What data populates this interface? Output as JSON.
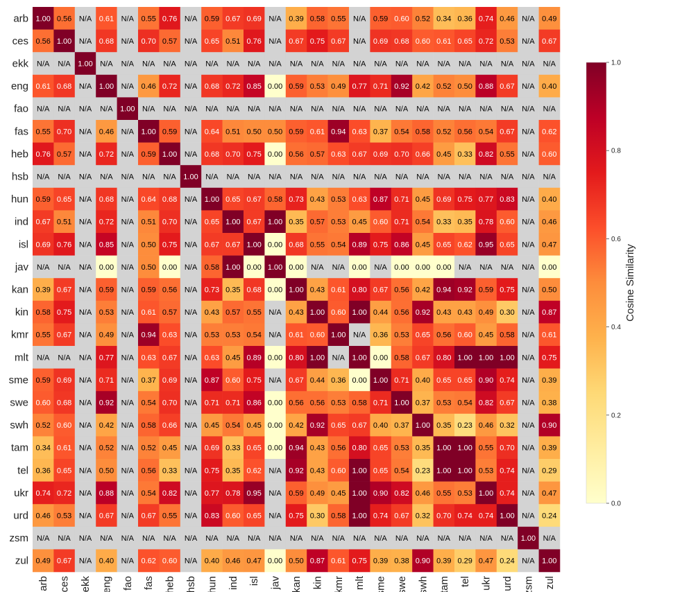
{
  "chart_data": {
    "type": "heatmap",
    "title": "",
    "languages": [
      "arb",
      "ces",
      "ekk",
      "eng",
      "fao",
      "fas",
      "heb",
      "hsb",
      "hun",
      "ind",
      "isl",
      "jav",
      "kan",
      "kin",
      "kmr",
      "mlt",
      "sme",
      "swe",
      "swh",
      "tam",
      "tel",
      "ukr",
      "urd",
      "zsm",
      "zul"
    ],
    "na_label": "N/A",
    "na_color": "#d3d3d3",
    "colorbar": {
      "label": "Cosine Similarity",
      "range": [
        0.0,
        1.0
      ],
      "ticks": [
        "0.0",
        "0.2",
        "0.4",
        "0.6",
        "0.8",
        "1.0"
      ],
      "colormap": "YlOrRd"
    },
    "values": [
      [
        1.0,
        0.56,
        null,
        0.61,
        null,
        0.55,
        0.76,
        null,
        0.59,
        0.67,
        0.69,
        null,
        0.39,
        0.58,
        0.55,
        null,
        0.59,
        0.6,
        0.52,
        0.34,
        0.36,
        0.74,
        0.46,
        null,
        0.49
      ],
      [
        0.56,
        1.0,
        null,
        0.68,
        null,
        0.7,
        0.57,
        null,
        0.65,
        0.51,
        0.76,
        null,
        0.67,
        0.75,
        0.67,
        null,
        0.69,
        0.68,
        0.6,
        0.61,
        0.65,
        0.72,
        0.53,
        null,
        0.67
      ],
      [
        null,
        null,
        1.0,
        null,
        null,
        null,
        null,
        null,
        null,
        null,
        null,
        null,
        null,
        null,
        null,
        null,
        null,
        null,
        null,
        null,
        null,
        null,
        null,
        null,
        null
      ],
      [
        0.61,
        0.68,
        null,
        1.0,
        null,
        0.46,
        0.72,
        null,
        0.68,
        0.72,
        0.85,
        0.0,
        0.59,
        0.53,
        0.49,
        0.77,
        0.71,
        0.92,
        0.42,
        0.52,
        0.5,
        0.88,
        0.67,
        null,
        0.4
      ],
      [
        null,
        null,
        null,
        null,
        1.0,
        null,
        null,
        null,
        null,
        null,
        null,
        null,
        null,
        null,
        null,
        null,
        null,
        null,
        null,
        null,
        null,
        null,
        null,
        null,
        null
      ],
      [
        0.55,
        0.7,
        null,
        0.46,
        null,
        1.0,
        0.59,
        null,
        0.64,
        0.51,
        0.5,
        0.5,
        0.59,
        0.61,
        0.94,
        0.63,
        0.37,
        0.54,
        0.58,
        0.52,
        0.56,
        0.54,
        0.67,
        null,
        0.62
      ],
      [
        0.76,
        0.57,
        null,
        0.72,
        null,
        0.59,
        1.0,
        null,
        0.68,
        0.7,
        0.75,
        0.0,
        0.56,
        0.57,
        0.63,
        0.67,
        0.69,
        0.7,
        0.66,
        0.45,
        0.33,
        0.82,
        0.55,
        null,
        0.6
      ],
      [
        null,
        null,
        null,
        null,
        null,
        null,
        null,
        1.0,
        null,
        null,
        null,
        null,
        null,
        null,
        null,
        null,
        null,
        null,
        null,
        null,
        null,
        null,
        null,
        null,
        null
      ],
      [
        0.59,
        0.65,
        null,
        0.68,
        null,
        0.64,
        0.68,
        null,
        1.0,
        0.65,
        0.67,
        0.58,
        0.73,
        0.43,
        0.53,
        0.63,
        0.87,
        0.71,
        0.45,
        0.69,
        0.75,
        0.77,
        0.83,
        null,
        0.4
      ],
      [
        0.67,
        0.51,
        null,
        0.72,
        null,
        0.51,
        0.7,
        null,
        0.65,
        1.0,
        0.67,
        1.0,
        0.35,
        0.57,
        0.53,
        0.45,
        0.6,
        0.71,
        0.54,
        0.33,
        0.35,
        0.78,
        0.6,
        null,
        0.46
      ],
      [
        0.69,
        0.76,
        null,
        0.85,
        null,
        0.5,
        0.75,
        null,
        0.67,
        0.67,
        1.0,
        0.0,
        0.68,
        0.55,
        0.54,
        0.89,
        0.75,
        0.86,
        0.45,
        0.65,
        0.62,
        0.95,
        0.65,
        null,
        0.47
      ],
      [
        null,
        null,
        null,
        0.0,
        null,
        0.5,
        0.0,
        null,
        0.58,
        1.0,
        0.0,
        1.0,
        0.0,
        null,
        null,
        0.0,
        null,
        0.0,
        0.0,
        0.0,
        null,
        null,
        null,
        null,
        0.0
      ],
      [
        0.39,
        0.67,
        null,
        0.59,
        null,
        0.59,
        0.56,
        null,
        0.73,
        0.35,
        0.68,
        0.0,
        1.0,
        0.43,
        0.61,
        0.8,
        0.67,
        0.56,
        0.42,
        0.94,
        0.92,
        0.59,
        0.75,
        null,
        0.5
      ],
      [
        0.58,
        0.75,
        null,
        0.53,
        null,
        0.61,
        0.57,
        null,
        0.43,
        0.57,
        0.55,
        null,
        0.43,
        1.0,
        0.6,
        1.0,
        0.44,
        0.56,
        0.92,
        0.43,
        0.43,
        0.49,
        0.3,
        null,
        0.87
      ],
      [
        0.55,
        0.67,
        null,
        0.49,
        null,
        0.94,
        0.63,
        null,
        0.53,
        0.53,
        0.54,
        null,
        0.61,
        0.6,
        1.0,
        null,
        0.36,
        0.53,
        0.65,
        0.56,
        0.6,
        0.45,
        0.58,
        null,
        0.61
      ],
      [
        null,
        null,
        null,
        0.77,
        null,
        0.63,
        0.67,
        null,
        0.63,
        0.45,
        0.89,
        0.0,
        0.8,
        1.0,
        null,
        1.0,
        0.0,
        0.58,
        0.67,
        0.8,
        1.0,
        1.0,
        1.0,
        null,
        0.75
      ],
      [
        0.59,
        0.69,
        null,
        0.71,
        null,
        0.37,
        0.69,
        null,
        0.87,
        0.6,
        0.75,
        null,
        0.67,
        0.44,
        0.36,
        0.0,
        1.0,
        0.71,
        0.4,
        0.65,
        0.65,
        0.9,
        0.74,
        null,
        0.39
      ],
      [
        0.6,
        0.68,
        null,
        0.92,
        null,
        0.54,
        0.7,
        null,
        0.71,
        0.71,
        0.86,
        0.0,
        0.56,
        0.56,
        0.53,
        0.58,
        0.71,
        1.0,
        0.37,
        0.53,
        0.54,
        0.82,
        0.67,
        null,
        0.38
      ],
      [
        0.52,
        0.6,
        null,
        0.42,
        null,
        0.58,
        0.66,
        null,
        0.45,
        0.54,
        0.45,
        0.0,
        0.42,
        0.92,
        0.65,
        0.67,
        0.4,
        0.37,
        1.0,
        0.35,
        0.23,
        0.46,
        0.32,
        null,
        0.9
      ],
      [
        0.34,
        0.61,
        null,
        0.52,
        null,
        0.52,
        0.45,
        null,
        0.69,
        0.33,
        0.65,
        0.0,
        0.94,
        0.43,
        0.56,
        0.8,
        0.65,
        0.53,
        0.35,
        1.0,
        1.0,
        0.55,
        0.7,
        null,
        0.39
      ],
      [
        0.36,
        0.65,
        null,
        0.5,
        null,
        0.56,
        0.33,
        null,
        0.75,
        0.35,
        0.62,
        null,
        0.92,
        0.43,
        0.6,
        1.0,
        0.65,
        0.54,
        0.23,
        1.0,
        1.0,
        0.53,
        0.74,
        null,
        0.29
      ],
      [
        0.74,
        0.72,
        null,
        0.88,
        null,
        0.54,
        0.82,
        null,
        0.77,
        0.78,
        0.95,
        null,
        0.59,
        0.49,
        0.45,
        1.0,
        0.9,
        0.82,
        0.46,
        0.55,
        0.53,
        1.0,
        0.74,
        null,
        0.47
      ],
      [
        0.46,
        0.53,
        null,
        0.67,
        null,
        0.67,
        0.55,
        null,
        0.83,
        0.6,
        0.65,
        null,
        0.75,
        0.3,
        0.58,
        1.0,
        0.74,
        0.67,
        0.32,
        0.7,
        0.74,
        0.74,
        1.0,
        null,
        0.24
      ],
      [
        null,
        null,
        null,
        null,
        null,
        null,
        null,
        null,
        null,
        null,
        null,
        null,
        null,
        null,
        null,
        null,
        null,
        null,
        null,
        null,
        null,
        null,
        null,
        1.0,
        null
      ],
      [
        0.49,
        0.67,
        null,
        0.4,
        null,
        0.62,
        0.6,
        null,
        0.4,
        0.46,
        0.47,
        0.0,
        0.5,
        0.87,
        0.61,
        0.75,
        0.39,
        0.38,
        0.9,
        0.39,
        0.29,
        0.47,
        0.24,
        null,
        1.0
      ]
    ]
  }
}
